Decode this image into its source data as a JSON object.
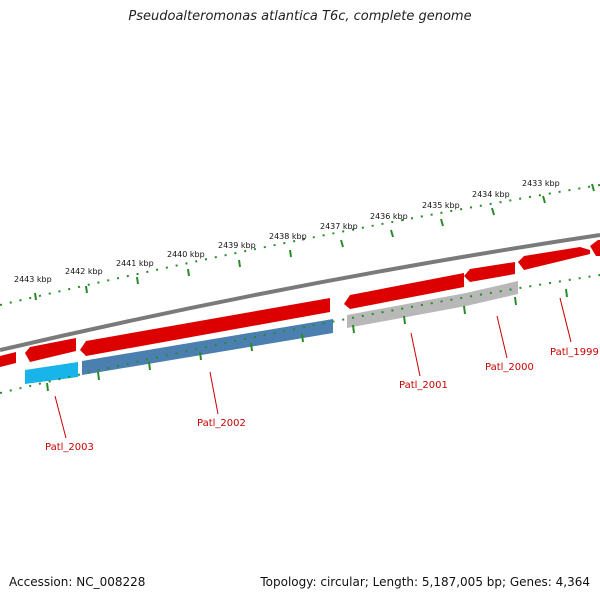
{
  "title": "Pseudoalteromonas atlantica T6c, complete genome",
  "footer": {
    "accession": "Accession: NC_008228",
    "summary": "Topology: circular; Length: 5,187,005 bp; Genes: 4,364"
  },
  "colors": {
    "forward_cds": "#dd0000",
    "reverse_cds_blue": "#4a7fb0",
    "reverse_cds_cyan": "#19b4ea",
    "reverse_cds_gray": "#b8b8b8",
    "backbone": "#7a7a7a",
    "ticks": "#2a8a2a",
    "gene_label": "#cc0000"
  },
  "kbp_labels": [
    "2433 kbp",
    "2434 kbp",
    "2435 kbp",
    "2436 kbp",
    "2437 kbp",
    "2438 kbp",
    "2439 kbp",
    "2440 kbp",
    "2441 kbp",
    "2442 kbp",
    "2443 kbp"
  ],
  "gene_labels": [
    "Patl_1999",
    "Patl_2000",
    "Patl_2001",
    "Patl_2002",
    "Patl_2003"
  ]
}
